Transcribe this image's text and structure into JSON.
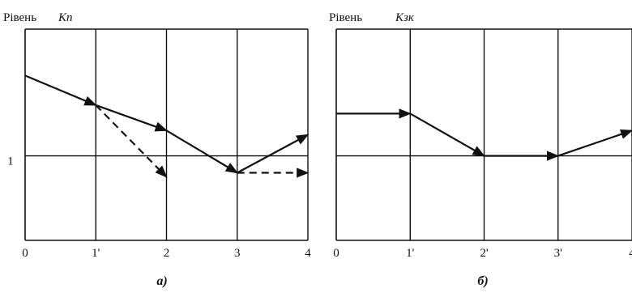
{
  "chart_data": [
    {
      "type": "line",
      "ylabel_prefix": "Рівень",
      "ylabel_symbol": "Кп",
      "caption": "а)",
      "x_ticks": [
        "0",
        "1'",
        "2",
        "3",
        "4"
      ],
      "y_ticks": [
        "1"
      ],
      "xlim": [
        0,
        4
      ],
      "ylim": [
        0,
        2.5
      ],
      "grid_x": true,
      "series": [
        {
          "style": "solid",
          "arrows": true,
          "points": [
            [
              0,
              1.95
            ],
            [
              1,
              1.6
            ],
            [
              2,
              1.3
            ],
            [
              3,
              0.8
            ],
            [
              4,
              1.25
            ]
          ]
        },
        {
          "style": "dashed",
          "arrows": true,
          "points": [
            [
              1,
              1.6
            ],
            [
              2,
              0.75
            ]
          ]
        },
        {
          "style": "dashed",
          "arrows": true,
          "points": [
            [
              3,
              0.8
            ],
            [
              4,
              0.8
            ]
          ]
        }
      ]
    },
    {
      "type": "line",
      "ylabel_prefix": "Рівень",
      "ylabel_symbol": "Кзк",
      "caption": "б)",
      "x_ticks": [
        "0",
        "1'",
        "2'",
        "3'",
        "4"
      ],
      "y_ticks": [],
      "xlim": [
        0,
        4
      ],
      "ylim": [
        0,
        2.5
      ],
      "grid_x": true,
      "series": [
        {
          "style": "solid",
          "arrows": true,
          "points": [
            [
              0,
              1.5
            ],
            [
              1,
              1.5
            ],
            [
              2,
              1.0
            ],
            [
              3,
              1.0
            ],
            [
              4,
              1.3
            ]
          ]
        }
      ]
    }
  ]
}
